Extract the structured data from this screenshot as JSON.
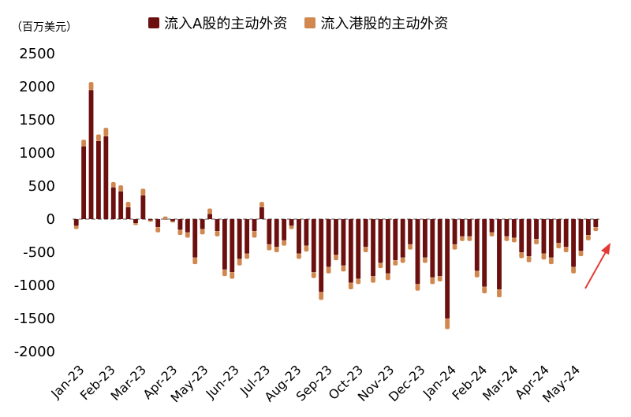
{
  "unit_label": "（百万美元）",
  "legend": [
    {
      "label": "流入A股的主动外资",
      "color": "#6b0f0f"
    },
    {
      "label": "流入港股的主动外资",
      "color": "#d08850"
    }
  ],
  "chart_data": {
    "type": "bar",
    "stacked": true,
    "ylim": [
      -2000,
      2500
    ],
    "yticks": [
      "2500",
      "2000",
      "1500",
      "1000",
      "500",
      "0",
      "-500",
      "-1000",
      "-1500",
      "-2000"
    ],
    "xtick_labels": [
      "Jan-23",
      "Feb-23",
      "Mar-23",
      "Apr-23",
      "May-23",
      "Jun-23",
      "Jul-23",
      "Aug-23",
      "Sep-23",
      "Oct-23",
      "Nov-23",
      "Dec-23",
      "Jan-24",
      "Feb-24",
      "Mar-24",
      "Apr-24",
      "May-24"
    ],
    "series": [
      {
        "name": "流入A股的主动外资",
        "values": [
          -100,
          1100,
          1950,
          1180,
          1250,
          480,
          420,
          180,
          -60,
          360,
          -20,
          -120,
          0,
          -30,
          -160,
          -200,
          -580,
          -150,
          80,
          -180,
          -760,
          -800,
          -600,
          -520,
          -180,
          180,
          -380,
          -420,
          -320,
          -100,
          -520,
          -400,
          -800,
          -1100,
          -720,
          -540,
          -700,
          -960,
          -900,
          -420,
          -860,
          -660,
          -820,
          -620,
          -580,
          -380,
          -980,
          -580,
          -880,
          -860,
          -1500,
          -380,
          -260,
          -260,
          -780,
          -1020,
          -200,
          -1060,
          -260,
          -280,
          -500,
          -560,
          -300,
          -520,
          -580,
          -360,
          -420,
          -720,
          -480,
          -240,
          -120
        ],
        "color": "#6b0f0f"
      },
      {
        "name": "流入港股的主动外资",
        "values": [
          -50,
          100,
          120,
          100,
          130,
          80,
          90,
          80,
          -30,
          100,
          -20,
          -80,
          40,
          -20,
          -80,
          -80,
          -100,
          -80,
          80,
          -80,
          -100,
          -100,
          -100,
          -80,
          -100,
          80,
          -90,
          -80,
          -80,
          -50,
          -80,
          -90,
          -90,
          -120,
          -100,
          -80,
          -90,
          -100,
          -80,
          -80,
          -100,
          -80,
          -100,
          -80,
          -80,
          -80,
          -100,
          -80,
          -100,
          -80,
          -160,
          -80,
          -70,
          -70,
          -100,
          -100,
          -60,
          -120,
          -70,
          -70,
          -90,
          -90,
          -80,
          -90,
          -100,
          -80,
          -80,
          -100,
          -80,
          -80,
          -60
        ],
        "color": "#d08850"
      }
    ]
  },
  "annotation": {
    "type": "arrow",
    "color": "#e53935"
  }
}
